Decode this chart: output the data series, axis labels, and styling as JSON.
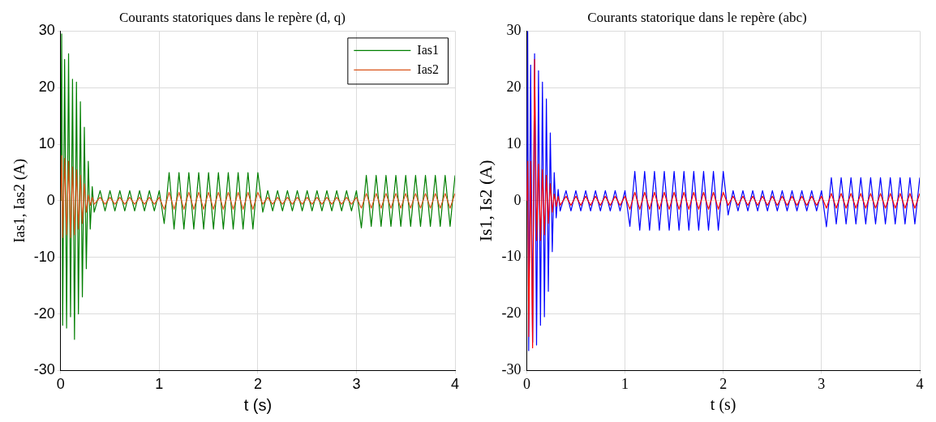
{
  "chart_data": [
    {
      "type": "line",
      "title": "Courants statoriques dans le repère (d, q)",
      "xlabel": "t (s)",
      "ylabel": "Ias1, Ias2 (A)",
      "xlim": [
        0,
        4
      ],
      "xticks": [
        0,
        1,
        2,
        3,
        4
      ],
      "ylim": [
        -30,
        30
      ],
      "yticks": [
        -30,
        -20,
        -10,
        0,
        10,
        20,
        30
      ],
      "grid": true,
      "legend": "top right",
      "marker": "none",
      "line_style": "solid",
      "x": [
        0,
        0.01,
        0.02,
        0.04,
        0.06,
        0.08,
        0.1,
        0.12,
        0.14,
        0.16,
        0.18,
        0.2,
        0.22,
        0.24,
        0.26,
        0.28,
        0.3,
        0.32,
        0.34,
        0.4,
        0.45,
        0.5,
        0.55,
        0.6,
        0.65,
        0.7,
        0.75,
        0.8,
        0.85,
        0.9,
        0.95,
        1,
        1.05,
        1.1,
        1.15,
        1.2,
        1.25,
        1.3,
        1.35,
        1.4,
        1.45,
        1.5,
        1.55,
        1.6,
        1.65,
        1.7,
        1.75,
        1.8,
        1.85,
        1.9,
        1.95,
        2,
        2.05,
        2.1,
        2.15,
        2.2,
        2.25,
        2.3,
        2.35,
        2.4,
        2.45,
        2.5,
        2.55,
        2.6,
        2.65,
        2.7,
        2.75,
        2.8,
        2.85,
        2.9,
        2.95,
        3,
        3.05,
        3.1,
        3.15,
        3.2,
        3.25,
        3.3,
        3.35,
        3.4,
        3.45,
        3.5,
        3.55,
        3.6,
        3.65,
        3.7,
        3.75,
        3.8,
        3.85,
        3.9,
        3.95,
        4
      ],
      "series": [
        {
          "name": "Ias1",
          "color": "#007f00",
          "values": [
            0,
            29.5,
            -22,
            25,
            -22.5,
            26,
            -20.5,
            21.5,
            -24.5,
            21,
            -20,
            17.5,
            -17,
            13,
            -12,
            7,
            -5,
            2.5,
            -2,
            1.8,
            -1.8,
            1.8,
            -1.8,
            1.8,
            -1.8,
            1.8,
            -1.8,
            1.8,
            -1.8,
            1.8,
            -1.8,
            1.8,
            -4,
            5,
            -5,
            5,
            -5,
            5,
            -5,
            5,
            -5,
            5,
            -5,
            5,
            -5,
            5,
            -5,
            5,
            -5,
            5,
            -5,
            5,
            -2,
            1.8,
            -1.8,
            1.8,
            -1.8,
            1.8,
            -1.8,
            1.8,
            -1.8,
            1.8,
            -1.8,
            1.8,
            -1.8,
            1.8,
            -1.8,
            1.8,
            -1.8,
            1.8,
            -1.8,
            1.8,
            -4.8,
            4.5,
            -4.5,
            4.5,
            -4.5,
            4.5,
            -4.5,
            4.5,
            -4.5,
            4.5,
            -4.5,
            4.5,
            -4.5,
            4.5,
            -4.5,
            4.5,
            -4.5,
            4.5,
            -4.5,
            4.5
          ]
        },
        {
          "name": "Ias2",
          "color": "#d95319",
          "values": [
            0,
            8,
            -6.5,
            7.5,
            -6,
            7,
            -6.5,
            6,
            -6,
            5.5,
            -5,
            4.5,
            -4,
            3,
            -2,
            1,
            -0.8,
            0.6,
            -0.6,
            0.6,
            -0.6,
            0.6,
            -0.6,
            0.6,
            -0.6,
            0.6,
            -0.6,
            0.6,
            -0.6,
            0.6,
            -0.6,
            0.6,
            -1.5,
            1.5,
            -1.5,
            1.5,
            -1.5,
            1.5,
            -1.5,
            1.5,
            -1.5,
            1.5,
            -1.5,
            1.5,
            -1.5,
            1.5,
            -1.5,
            1.5,
            -1.5,
            1.5,
            -1.5,
            1.5,
            -0.6,
            0.6,
            -0.6,
            0.6,
            -0.6,
            0.6,
            -0.6,
            0.6,
            -0.6,
            0.6,
            -0.6,
            0.6,
            -0.6,
            0.6,
            -0.6,
            0.6,
            -0.6,
            0.6,
            -0.6,
            0.6,
            -1.3,
            1.3,
            -1.3,
            1.3,
            -1.3,
            1.3,
            -1.3,
            1.3,
            -1.3,
            1.3,
            -1.3,
            1.3,
            -1.3,
            1.3,
            -1.3,
            1.3,
            -1.3,
            1.3,
            -1.3,
            1.3
          ]
        }
      ]
    },
    {
      "type": "line",
      "title": "Courants statorique dans le repère (abc)",
      "xlabel": "t (s)",
      "ylabel": "Is1, Is2 (A)",
      "xlim": [
        0,
        4
      ],
      "xticks": [
        0,
        1,
        2,
        3,
        4
      ],
      "ylim": [
        -30,
        30
      ],
      "yticks": [
        -30,
        -20,
        -10,
        0,
        10,
        20,
        30
      ],
      "grid": true,
      "marker": "none",
      "line_style": "solid",
      "x": [
        0,
        0.01,
        0.02,
        0.04,
        0.06,
        0.08,
        0.1,
        0.12,
        0.14,
        0.16,
        0.18,
        0.2,
        0.22,
        0.24,
        0.26,
        0.28,
        0.3,
        0.32,
        0.34,
        0.4,
        0.45,
        0.5,
        0.55,
        0.6,
        0.65,
        0.7,
        0.75,
        0.8,
        0.85,
        0.9,
        0.95,
        1,
        1.05,
        1.1,
        1.15,
        1.2,
        1.25,
        1.3,
        1.35,
        1.4,
        1.45,
        1.5,
        1.55,
        1.6,
        1.65,
        1.7,
        1.75,
        1.8,
        1.85,
        1.9,
        1.95,
        2,
        2.05,
        2.1,
        2.15,
        2.2,
        2.25,
        2.3,
        2.35,
        2.4,
        2.45,
        2.5,
        2.55,
        2.6,
        2.65,
        2.7,
        2.75,
        2.8,
        2.85,
        2.9,
        2.95,
        3,
        3.05,
        3.1,
        3.15,
        3.2,
        3.25,
        3.3,
        3.35,
        3.4,
        3.45,
        3.5,
        3.55,
        3.6,
        3.65,
        3.7,
        3.75,
        3.8,
        3.85,
        3.9,
        3.95,
        4
      ],
      "series": [
        {
          "color": "#0000ff",
          "values": [
            0,
            30,
            -26.5,
            24,
            -25,
            26,
            -25.5,
            23,
            -22,
            21,
            -20.5,
            18,
            -16,
            12,
            -9,
            5,
            -3,
            2,
            -1.8,
            1.8,
            -1.8,
            1.8,
            -1.8,
            1.8,
            -1.8,
            1.8,
            -1.8,
            1.8,
            -1.8,
            1.8,
            -1.8,
            1.8,
            -4.5,
            5.2,
            -5.2,
            5.2,
            -5.2,
            5.2,
            -5.2,
            5.2,
            -5.2,
            5.2,
            -5.2,
            5.2,
            -5.2,
            5.2,
            -5.2,
            5.2,
            -5.2,
            5.2,
            -5.2,
            5.2,
            -2.5,
            1.8,
            -1.8,
            1.8,
            -1.8,
            1.8,
            -1.8,
            1.8,
            -1.8,
            1.8,
            -1.8,
            1.8,
            -1.8,
            1.8,
            -1.8,
            1.8,
            -1.8,
            1.8,
            -1.8,
            1.8,
            -4.6,
            4.1,
            -4.1,
            4.1,
            -4.1,
            4.1,
            -4.1,
            4.1,
            -4.1,
            4.1,
            -4.1,
            4.1,
            -4.1,
            4.1,
            -4.1,
            4.1,
            -4.1,
            4.1,
            -4.1,
            4.1
          ]
        },
        {
          "color": "#ff0000",
          "values": [
            0,
            7,
            -24,
            7,
            -26,
            25,
            -7,
            6.5,
            -7,
            5.5,
            -6,
            4.5,
            -4,
            3,
            -2,
            1.2,
            -1,
            0.8,
            -0.8,
            0.8,
            -0.8,
            0.8,
            -0.8,
            0.8,
            -0.8,
            0.8,
            -0.8,
            0.8,
            -0.8,
            0.8,
            -0.8,
            0.8,
            -1.5,
            1.5,
            -1.5,
            1.5,
            -1.5,
            1.5,
            -1.5,
            1.5,
            -1.5,
            1.5,
            -1.5,
            1.5,
            -1.5,
            1.5,
            -1.5,
            1.5,
            -1.5,
            1.5,
            -1.5,
            1.5,
            -0.8,
            0.8,
            -0.8,
            0.8,
            -0.8,
            0.8,
            -0.8,
            0.8,
            -0.8,
            0.8,
            -0.8,
            0.8,
            -0.8,
            0.8,
            -0.8,
            0.8,
            -0.8,
            0.8,
            -0.8,
            0.8,
            -1.3,
            1.3,
            -1.3,
            1.3,
            -1.3,
            1.3,
            -1.3,
            1.3,
            -1.3,
            1.3,
            -1.3,
            1.3,
            -1.3,
            1.3,
            -1.3,
            1.3,
            -1.3,
            1.3,
            -1.3,
            1.3
          ]
        }
      ]
    }
  ]
}
